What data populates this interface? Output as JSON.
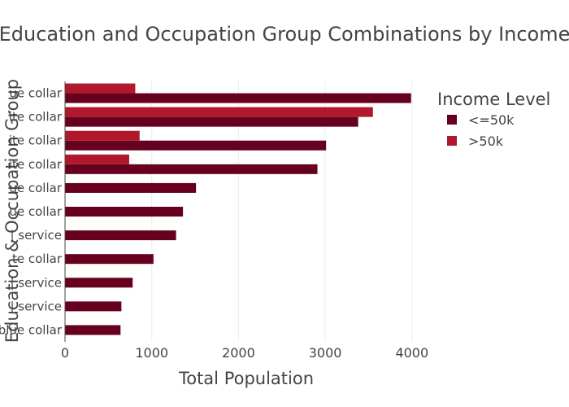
{
  "chart_data": {
    "type": "bar",
    "orientation": "horizontal",
    "barmode": "group",
    "title": "Education and Occupation Group Combinations by Income",
    "xlabel": "Total Population",
    "ylabel": "Education & Occupation Group",
    "xlim": [
      0,
      4200
    ],
    "xticks": [
      0,
      1000,
      2000,
      3000,
      4000
    ],
    "grid": true,
    "legend": {
      "title": "Income Level",
      "position": "right"
    },
    "categories": [
      "blue collar",
      "| service",
      "| service",
      "te collar",
      "| service",
      "ue collar",
      "ue collar",
      "ite collar",
      "ite collar",
      "ite collar",
      "ue collar"
    ],
    "series": [
      {
        "name": "<=50k",
        "color": "#67001f",
        "values": [
          640,
          650,
          780,
          1020,
          1280,
          1360,
          1510,
          2910,
          3010,
          3380,
          3990
        ]
      },
      {
        "name": ">50k",
        "color": "#b2182b",
        "values": [
          0,
          0,
          0,
          0,
          0,
          0,
          0,
          740,
          860,
          3550,
          810
        ]
      }
    ]
  }
}
